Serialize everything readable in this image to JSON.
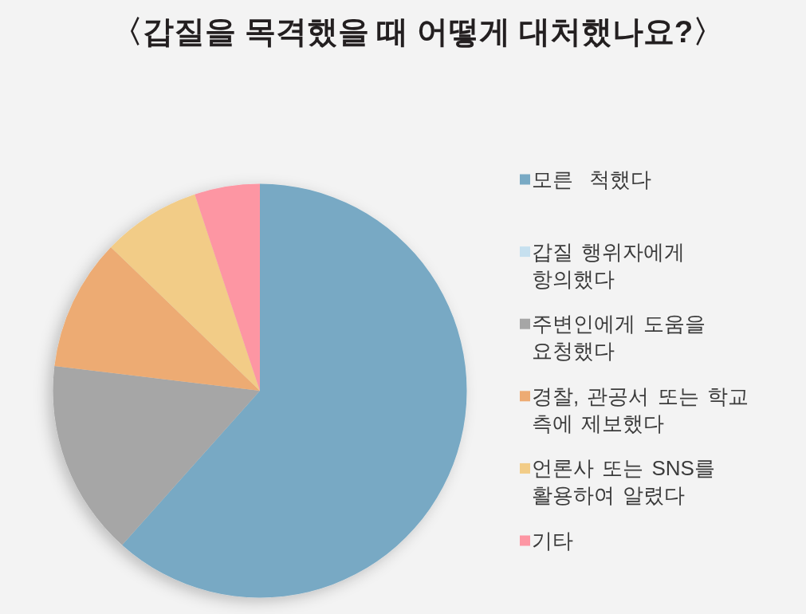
{
  "chart_data": {
    "type": "pie",
    "title": "〈갑질을 목격했을 때 어떻게 대처했나요?〉",
    "categories": [
      "모른  척했다",
      "갑질 행위자에게 항의했다",
      "주변인에게 도움을 요청했다",
      "경찰, 관공서 또는 학교 측에 제보했다",
      "언론사 또는 SNS를 활용하여 알렸다",
      "기타"
    ],
    "values": [
      61.6,
      0,
      15.3,
      10.3,
      7.7,
      5.1
    ],
    "colors": [
      "#78a9c4",
      "#c6e0ef",
      "#a6a6a6",
      "#edab73",
      "#f2cc87",
      "#fd96a3"
    ],
    "legend": "right"
  }
}
